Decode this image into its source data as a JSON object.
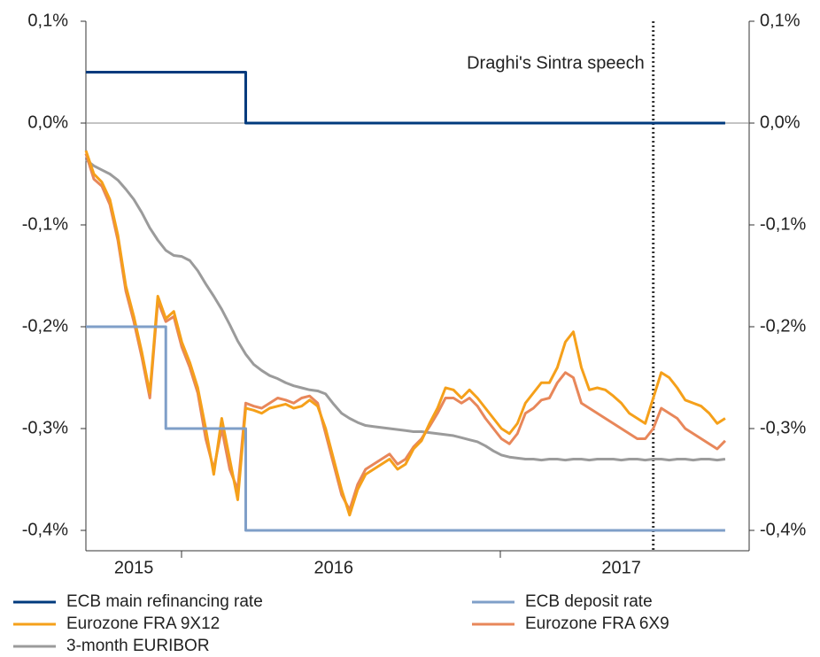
{
  "chart_data": {
    "type": "line",
    "annotations": [
      {
        "text": "Draghi's Sintra speech",
        "category_index": 71
      }
    ],
    "categories": [
      null,
      null,
      null,
      null,
      null,
      null,
      "2015",
      null,
      null,
      null,
      null,
      null,
      null,
      null,
      null,
      null,
      null,
      null,
      null,
      null,
      null,
      null,
      null,
      null,
      null,
      null,
      null,
      null,
      null,
      null,
      null,
      "2016",
      null,
      null,
      null,
      null,
      null,
      null,
      null,
      null,
      null,
      null,
      null,
      null,
      null,
      null,
      null,
      null,
      null,
      null,
      null,
      null,
      null,
      null,
      null,
      null,
      null,
      null,
      null,
      null,
      null,
      null,
      null,
      null,
      null,
      null,
      null,
      "2017",
      null,
      null,
      null,
      null,
      null,
      null,
      null,
      null,
      null,
      null,
      null,
      null,
      null,
      null,
      null,
      null
    ],
    "ylim": [
      -0.42,
      0.1
    ],
    "yticks": [
      {
        "value": 0.1,
        "label": "0,1%"
      },
      {
        "value": 0,
        "label": "0,0%"
      },
      {
        "value": -0.1,
        "label": "-0,1%"
      },
      {
        "value": -0.2,
        "label": "-0,2%"
      },
      {
        "value": -0.3,
        "label": "-0,3%"
      },
      {
        "value": -0.4,
        "label": "-0,4%"
      }
    ],
    "y2lim": [
      -0.42,
      0.1
    ],
    "y2ticks": [
      {
        "value": 0.1,
        "label": "0,1%"
      },
      {
        "value": 0,
        "label": "0,0%"
      },
      {
        "value": -0.1,
        "label": "-0,1%"
      },
      {
        "value": -0.2,
        "label": "-0,2%"
      },
      {
        "value": -0.3,
        "label": "-0,3%"
      },
      {
        "value": -0.4,
        "label": "-0,4%"
      }
    ],
    "zero_line": true,
    "series": [
      {
        "name": "ECB main refinancing rate",
        "color": "#003a7d",
        "step": true,
        "values": [
          0.05,
          0.05,
          0.05,
          0.05,
          0.05,
          0.05,
          0.05,
          0.05,
          0.05,
          0.05,
          0.05,
          0.05,
          0.05,
          0.05,
          0.05,
          0.05,
          0.05,
          0.05,
          0.05,
          0.05,
          0,
          0,
          0,
          0,
          0,
          0,
          0,
          0,
          0,
          0,
          0,
          0,
          0,
          0,
          0,
          0,
          0,
          0,
          0,
          0,
          0,
          0,
          0,
          0,
          0,
          0,
          0,
          0,
          0,
          0,
          0,
          0,
          0,
          0,
          0,
          0,
          0,
          0,
          0,
          0,
          0,
          0,
          0,
          0,
          0,
          0,
          0,
          0,
          0,
          0,
          0,
          0,
          0,
          0,
          0,
          0,
          0,
          0,
          0,
          0,
          0,
          null,
          null,
          null
        ]
      },
      {
        "name": "ECB deposit rate",
        "color": "#7f9fc8",
        "step": true,
        "values": [
          -0.2,
          -0.2,
          -0.2,
          -0.2,
          -0.2,
          -0.2,
          -0.2,
          -0.2,
          -0.2,
          -0.2,
          -0.3,
          -0.3,
          -0.3,
          -0.3,
          -0.3,
          -0.3,
          -0.3,
          -0.3,
          -0.3,
          -0.3,
          -0.4,
          -0.4,
          -0.4,
          -0.4,
          -0.4,
          -0.4,
          -0.4,
          -0.4,
          -0.4,
          -0.4,
          -0.4,
          -0.4,
          -0.4,
          -0.4,
          -0.4,
          -0.4,
          -0.4,
          -0.4,
          -0.4,
          -0.4,
          -0.4,
          -0.4,
          -0.4,
          -0.4,
          -0.4,
          -0.4,
          -0.4,
          -0.4,
          -0.4,
          -0.4,
          -0.4,
          -0.4,
          -0.4,
          -0.4,
          -0.4,
          -0.4,
          -0.4,
          -0.4,
          -0.4,
          -0.4,
          -0.4,
          -0.4,
          -0.4,
          -0.4,
          -0.4,
          -0.4,
          -0.4,
          -0.4,
          -0.4,
          -0.4,
          -0.4,
          -0.4,
          -0.4,
          -0.4,
          -0.4,
          -0.4,
          -0.4,
          -0.4,
          -0.4,
          -0.4,
          -0.4,
          null,
          null,
          null
        ]
      },
      {
        "name": "Eurozone FRA 9X12",
        "color": "#f5a01a",
        "values": [
          -0.027,
          -0.05,
          -0.058,
          -0.075,
          -0.11,
          -0.16,
          -0.19,
          -0.225,
          -0.265,
          -0.17,
          -0.192,
          -0.185,
          -0.215,
          -0.235,
          -0.26,
          -0.3,
          -0.345,
          -0.29,
          -0.33,
          -0.37,
          -0.28,
          -0.282,
          -0.285,
          -0.28,
          -0.278,
          -0.276,
          -0.28,
          -0.278,
          -0.272,
          -0.278,
          -0.3,
          -0.33,
          -0.36,
          -0.385,
          -0.36,
          -0.345,
          -0.34,
          -0.335,
          -0.33,
          -0.34,
          -0.335,
          -0.32,
          -0.312,
          -0.295,
          -0.28,
          -0.26,
          -0.262,
          -0.27,
          -0.262,
          -0.27,
          -0.28,
          -0.29,
          -0.3,
          -0.305,
          -0.295,
          -0.275,
          -0.265,
          -0.255,
          -0.255,
          -0.24,
          -0.215,
          -0.205,
          -0.24,
          -0.262,
          -0.26,
          -0.262,
          -0.268,
          -0.275,
          -0.285,
          -0.29,
          -0.295,
          -0.27,
          -0.245,
          -0.25,
          -0.26,
          -0.272,
          -0.275,
          -0.278,
          -0.285,
          -0.295,
          -0.29,
          null,
          null,
          null
        ]
      },
      {
        "name": "Eurozone FRA 6X9",
        "color": "#e8875a",
        "values": [
          -0.03,
          -0.055,
          -0.062,
          -0.08,
          -0.115,
          -0.165,
          -0.195,
          -0.23,
          -0.27,
          -0.175,
          -0.195,
          -0.19,
          -0.22,
          -0.24,
          -0.265,
          -0.31,
          -0.34,
          -0.3,
          -0.34,
          -0.36,
          -0.275,
          -0.278,
          -0.28,
          -0.275,
          -0.27,
          -0.272,
          -0.275,
          -0.27,
          -0.268,
          -0.275,
          -0.305,
          -0.335,
          -0.365,
          -0.38,
          -0.355,
          -0.34,
          -0.335,
          -0.33,
          -0.325,
          -0.335,
          -0.33,
          -0.318,
          -0.31,
          -0.298,
          -0.285,
          -0.27,
          -0.27,
          -0.275,
          -0.27,
          -0.278,
          -0.29,
          -0.3,
          -0.31,
          -0.315,
          -0.305,
          -0.285,
          -0.28,
          -0.272,
          -0.27,
          -0.255,
          -0.245,
          -0.25,
          -0.275,
          -0.28,
          -0.285,
          -0.29,
          -0.295,
          -0.3,
          -0.305,
          -0.31,
          -0.31,
          -0.3,
          -0.28,
          -0.285,
          -0.29,
          -0.3,
          -0.305,
          -0.31,
          -0.315,
          -0.32,
          -0.312,
          null,
          null,
          null
        ]
      },
      {
        "name": "3-month EURIBOR",
        "color": "#9b9b9b",
        "values": [
          -0.036,
          -0.042,
          -0.046,
          -0.05,
          -0.056,
          -0.065,
          -0.075,
          -0.088,
          -0.103,
          -0.115,
          -0.125,
          -0.13,
          -0.131,
          -0.135,
          -0.145,
          -0.158,
          -0.17,
          -0.183,
          -0.198,
          -0.214,
          -0.227,
          -0.237,
          -0.243,
          -0.248,
          -0.251,
          -0.255,
          -0.258,
          -0.26,
          -0.262,
          -0.263,
          -0.266,
          -0.276,
          -0.285,
          -0.29,
          -0.294,
          -0.297,
          -0.298,
          -0.299,
          -0.3,
          -0.301,
          -0.302,
          -0.303,
          -0.303,
          -0.304,
          -0.305,
          -0.306,
          -0.307,
          -0.309,
          -0.311,
          -0.313,
          -0.317,
          -0.322,
          -0.326,
          -0.328,
          -0.329,
          -0.33,
          -0.33,
          -0.331,
          -0.33,
          -0.33,
          -0.331,
          -0.33,
          -0.33,
          -0.331,
          -0.33,
          -0.33,
          -0.33,
          -0.331,
          -0.33,
          -0.33,
          -0.331,
          -0.33,
          -0.33,
          -0.331,
          -0.33,
          -0.33,
          -0.331,
          -0.33,
          -0.33,
          -0.331,
          -0.33,
          null,
          null,
          null
        ]
      }
    ]
  }
}
